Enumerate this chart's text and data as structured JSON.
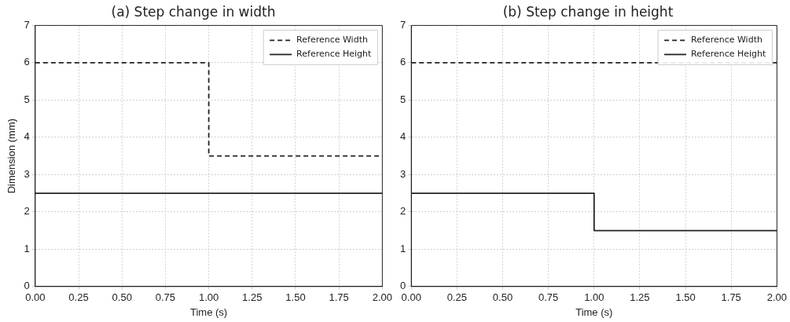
{
  "chart_data": [
    {
      "type": "step",
      "title": "(a) Step change in width",
      "xlabel": "Time (s)",
      "ylabel": "Dimension (mm)",
      "xlim": [
        0,
        2
      ],
      "xticks": [
        {
          "value": 0,
          "label": "0.00"
        },
        {
          "value": 0.25,
          "label": "0.25"
        },
        {
          "value": 0.5,
          "label": "0.50"
        },
        {
          "value": 0.75,
          "label": "0.75"
        },
        {
          "value": 1,
          "label": "1.00"
        },
        {
          "value": 1.25,
          "label": "1.25"
        },
        {
          "value": 1.5,
          "label": "1.50"
        },
        {
          "value": 1.75,
          "label": "1.75"
        },
        {
          "value": 2,
          "label": "2.00"
        }
      ],
      "ylim": [
        0,
        7
      ],
      "yticks": [
        0,
        1,
        2,
        3,
        4,
        5,
        6,
        7
      ],
      "grid": true,
      "legend": "top right",
      "series": [
        {
          "name": "Reference Width",
          "color": "#222222",
          "line_style": "dashed",
          "x": [
            0,
            1,
            2
          ],
          "values": [
            6,
            3.5,
            3.5
          ]
        },
        {
          "name": "Reference Height",
          "color": "#222222",
          "line_style": "solid",
          "x": [
            0,
            1,
            2
          ],
          "values": [
            2.5,
            2.5,
            2.5
          ]
        }
      ]
    },
    {
      "type": "step",
      "title": "(b) Step change in height",
      "xlabel": "Time (s)",
      "xlim": [
        0,
        2
      ],
      "xticks": [
        {
          "value": 0,
          "label": "0.00"
        },
        {
          "value": 0.25,
          "label": "0.25"
        },
        {
          "value": 0.5,
          "label": "0.50"
        },
        {
          "value": 0.75,
          "label": "0.75"
        },
        {
          "value": 1,
          "label": "1.00"
        },
        {
          "value": 1.25,
          "label": "1.25"
        },
        {
          "value": 1.5,
          "label": "1.50"
        },
        {
          "value": 1.75,
          "label": "1.75"
        },
        {
          "value": 2,
          "label": "2.00"
        }
      ],
      "ylim": [
        0,
        7
      ],
      "yticks": [
        0,
        1,
        2,
        3,
        4,
        5,
        6,
        7
      ],
      "grid": true,
      "legend": "top right",
      "series": [
        {
          "name": "Reference Width",
          "color": "#222222",
          "line_style": "dashed",
          "x": [
            0,
            1,
            2
          ],
          "values": [
            6,
            6,
            6
          ]
        },
        {
          "name": "Reference Height",
          "color": "#222222",
          "line_style": "solid",
          "x": [
            0,
            1,
            2
          ],
          "values": [
            2.5,
            1.5,
            1.5
          ]
        }
      ]
    }
  ]
}
